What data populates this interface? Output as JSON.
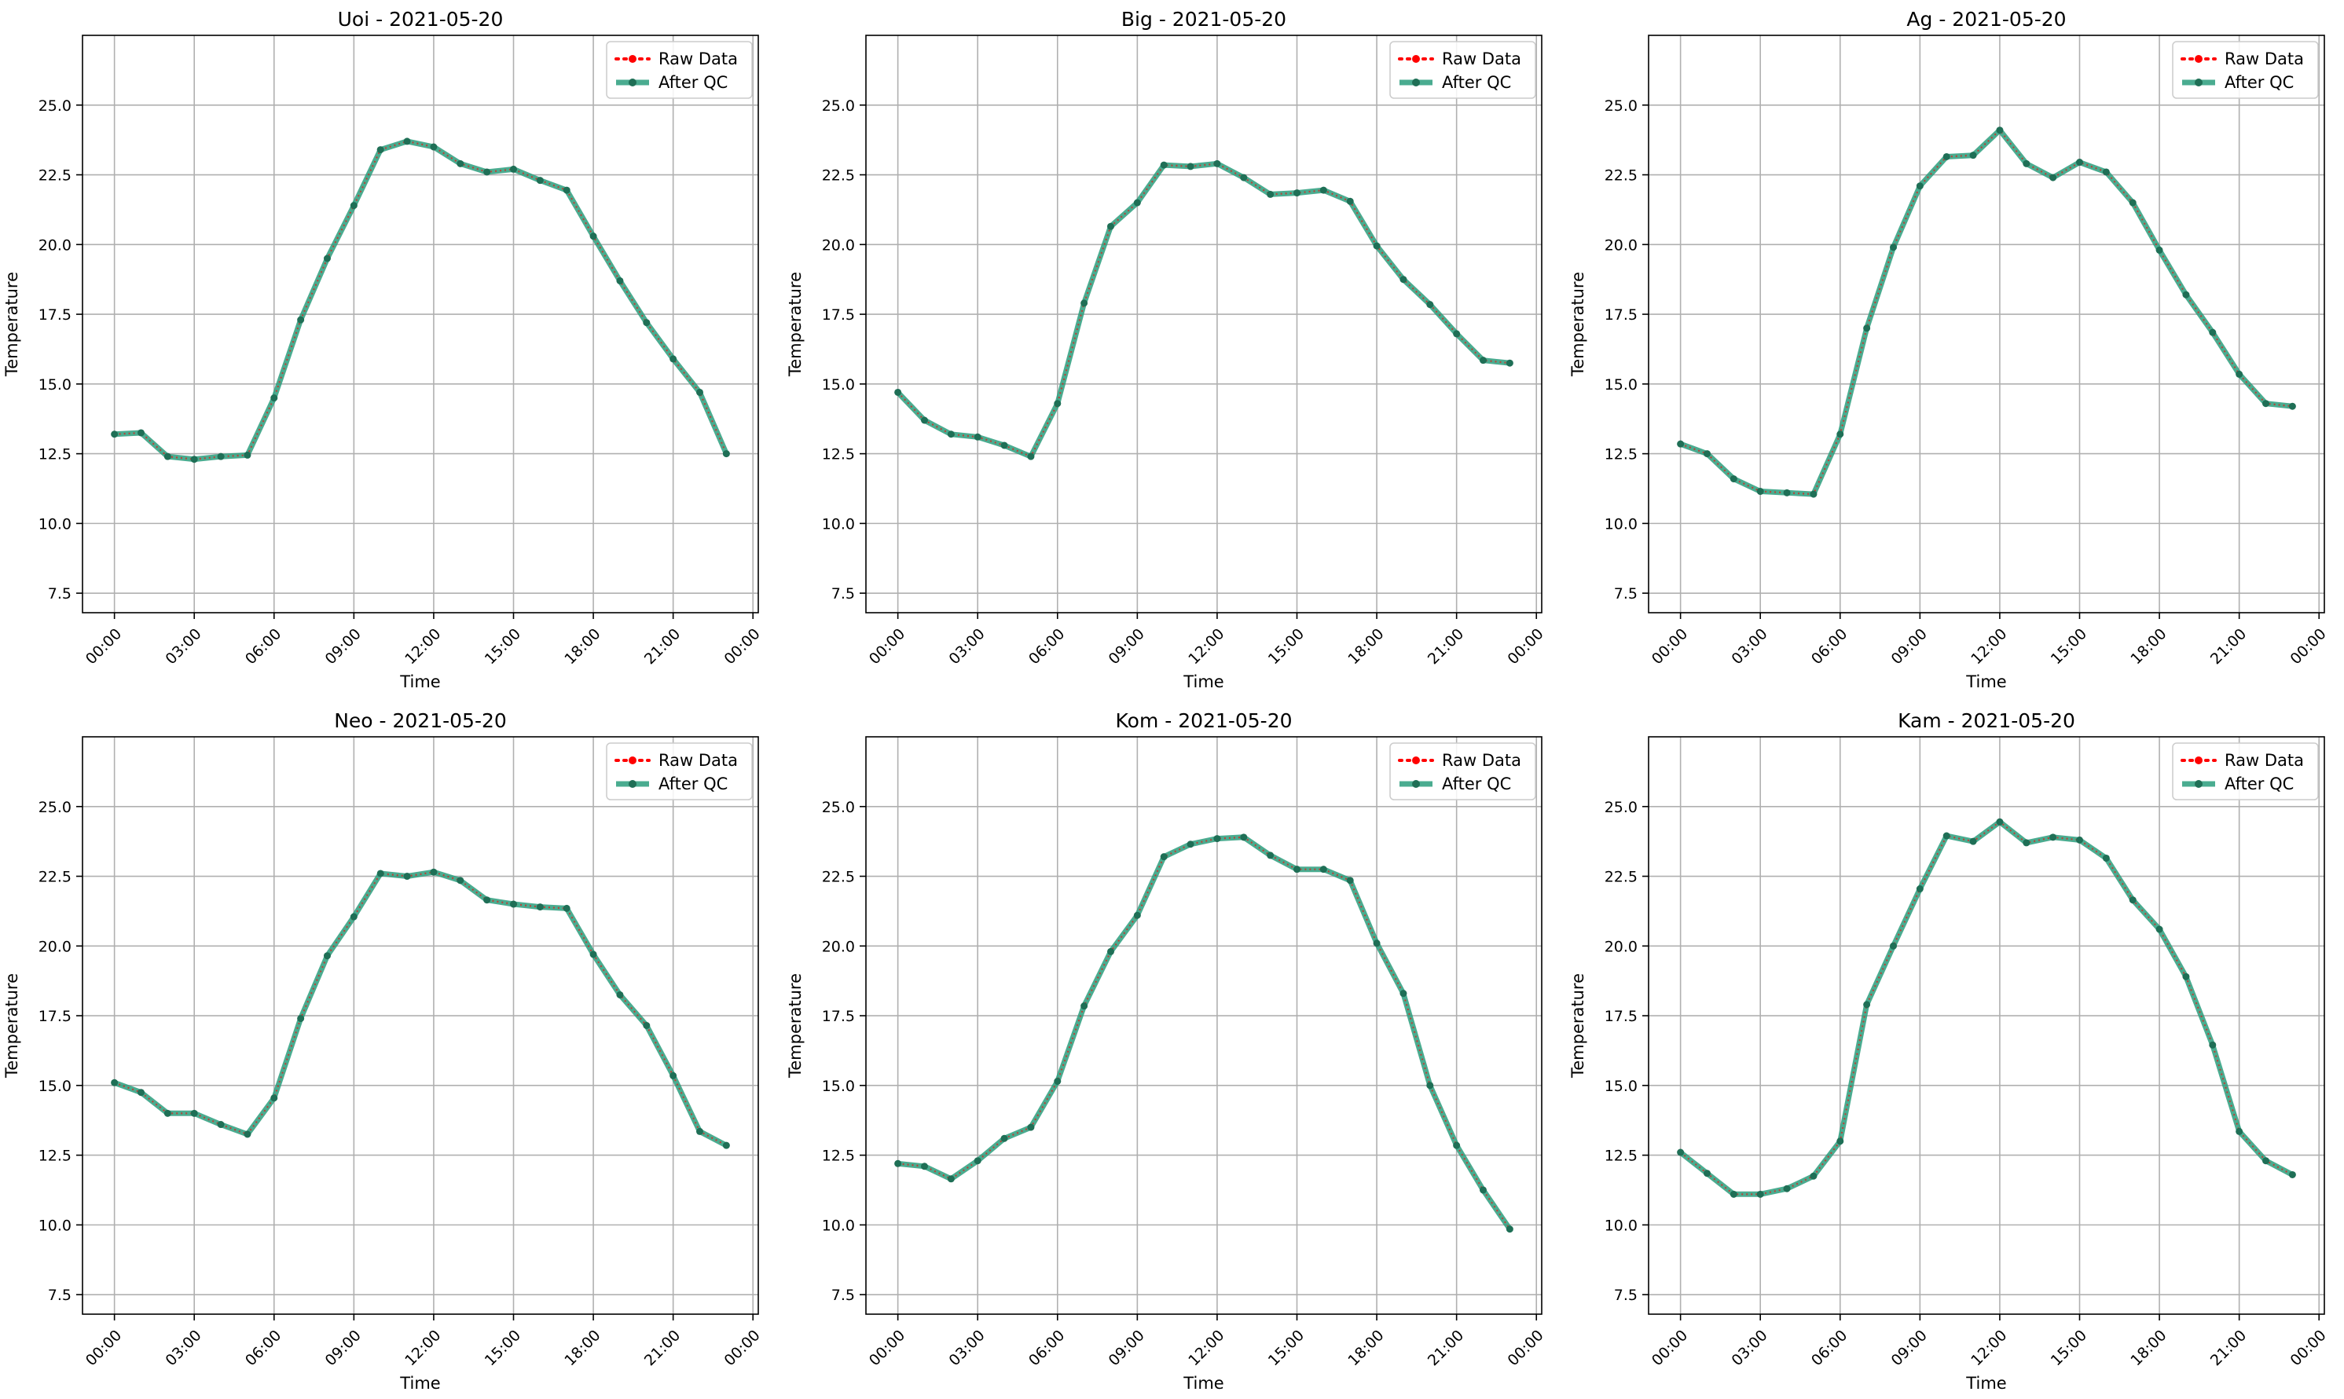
{
  "colors": {
    "raw": "#ff0000",
    "qc": "#2a9d7c",
    "qc_marker": "#1f6f56",
    "grid": "#b0b0b0",
    "legend_border": "#cccccc"
  },
  "chart_data": [
    {
      "type": "line",
      "title": "Uoi - 2021-05-20",
      "xlabel": "Time",
      "ylabel": "Temperature",
      "ylim": [
        6.8,
        27.5
      ],
      "yticks": [
        "7.5",
        "10.0",
        "12.5",
        "15.0",
        "17.5",
        "20.0",
        "22.5",
        "25.0"
      ],
      "xlim_hours": [
        -1.2,
        24.2
      ],
      "xticks": [
        "00:00",
        "03:00",
        "06:00",
        "09:00",
        "12:00",
        "15:00",
        "18:00",
        "21:00",
        "00:00"
      ],
      "grid": true,
      "legend_position": "top-right",
      "x": [
        "00:00",
        "01:00",
        "02:00",
        "03:00",
        "04:00",
        "05:00",
        "06:00",
        "07:00",
        "08:00",
        "09:00",
        "10:00",
        "11:00",
        "12:00",
        "13:00",
        "14:00",
        "15:00",
        "16:00",
        "17:00",
        "18:00",
        "19:00",
        "20:00",
        "21:00",
        "22:00",
        "23:00"
      ],
      "series": [
        {
          "name": "Raw Data",
          "values": [
            13.2,
            13.25,
            12.4,
            12.3,
            12.4,
            12.45,
            14.5,
            17.3,
            19.5,
            21.4,
            23.4,
            23.7,
            23.5,
            22.9,
            22.6,
            22.7,
            22.3,
            21.95,
            20.3,
            18.7,
            17.2,
            15.9,
            14.7,
            12.5
          ]
        },
        {
          "name": "After QC",
          "values": [
            13.2,
            13.25,
            12.4,
            12.3,
            12.4,
            12.45,
            14.5,
            17.3,
            19.5,
            21.4,
            23.4,
            23.7,
            23.5,
            22.9,
            22.6,
            22.7,
            22.3,
            21.95,
            20.3,
            18.7,
            17.2,
            15.9,
            14.7,
            12.5
          ]
        }
      ]
    },
    {
      "type": "line",
      "title": "Big - 2021-05-20",
      "xlabel": "Time",
      "ylabel": "Temperature",
      "ylim": [
        6.8,
        27.5
      ],
      "yticks": [
        "7.5",
        "10.0",
        "12.5",
        "15.0",
        "17.5",
        "20.0",
        "22.5",
        "25.0"
      ],
      "xlim_hours": [
        -1.2,
        24.2
      ],
      "xticks": [
        "00:00",
        "03:00",
        "06:00",
        "09:00",
        "12:00",
        "15:00",
        "18:00",
        "21:00",
        "00:00"
      ],
      "grid": true,
      "legend_position": "top-right",
      "x": [
        "00:00",
        "01:00",
        "02:00",
        "03:00",
        "04:00",
        "05:00",
        "06:00",
        "07:00",
        "08:00",
        "09:00",
        "10:00",
        "11:00",
        "12:00",
        "13:00",
        "14:00",
        "15:00",
        "16:00",
        "17:00",
        "18:00",
        "19:00",
        "20:00",
        "21:00",
        "22:00",
        "23:00"
      ],
      "series": [
        {
          "name": "Raw Data",
          "values": [
            14.7,
            13.7,
            13.2,
            13.1,
            12.8,
            12.4,
            14.3,
            17.9,
            20.65,
            21.5,
            22.85,
            22.8,
            22.9,
            22.4,
            21.8,
            21.85,
            21.95,
            21.55,
            19.95,
            18.75,
            17.85,
            16.8,
            15.85,
            15.75
          ]
        },
        {
          "name": "After QC",
          "values": [
            14.7,
            13.7,
            13.2,
            13.1,
            12.8,
            12.4,
            14.3,
            17.9,
            20.65,
            21.5,
            22.85,
            22.8,
            22.9,
            22.4,
            21.8,
            21.85,
            21.95,
            21.55,
            19.95,
            18.75,
            17.85,
            16.8,
            15.85,
            15.75
          ]
        }
      ]
    },
    {
      "type": "line",
      "title": "Ag - 2021-05-20",
      "xlabel": "Time",
      "ylabel": "Temperature",
      "ylim": [
        6.8,
        27.5
      ],
      "yticks": [
        "7.5",
        "10.0",
        "12.5",
        "15.0",
        "17.5",
        "20.0",
        "22.5",
        "25.0"
      ],
      "xlim_hours": [
        -1.2,
        24.2
      ],
      "xticks": [
        "00:00",
        "03:00",
        "06:00",
        "09:00",
        "12:00",
        "15:00",
        "18:00",
        "21:00",
        "00:00"
      ],
      "grid": true,
      "legend_position": "top-right",
      "x": [
        "00:00",
        "01:00",
        "02:00",
        "03:00",
        "04:00",
        "05:00",
        "06:00",
        "07:00",
        "08:00",
        "09:00",
        "10:00",
        "11:00",
        "12:00",
        "13:00",
        "14:00",
        "15:00",
        "16:00",
        "17:00",
        "18:00",
        "19:00",
        "20:00",
        "21:00",
        "22:00",
        "23:00"
      ],
      "series": [
        {
          "name": "Raw Data",
          "values": [
            12.85,
            12.5,
            11.6,
            11.15,
            11.1,
            11.05,
            13.2,
            17.0,
            19.9,
            22.1,
            23.15,
            23.2,
            24.1,
            22.9,
            22.4,
            22.95,
            22.6,
            21.5,
            19.8,
            18.2,
            16.85,
            15.35,
            14.3,
            14.2
          ]
        },
        {
          "name": "After QC",
          "values": [
            12.85,
            12.5,
            11.6,
            11.15,
            11.1,
            11.05,
            13.2,
            17.0,
            19.9,
            22.1,
            23.15,
            23.2,
            24.1,
            22.9,
            22.4,
            22.95,
            22.6,
            21.5,
            19.8,
            18.2,
            16.85,
            15.35,
            14.3,
            14.2
          ]
        }
      ]
    },
    {
      "type": "line",
      "title": "Neo - 2021-05-20",
      "xlabel": "Time",
      "ylabel": "Temperature",
      "ylim": [
        6.8,
        27.5
      ],
      "yticks": [
        "7.5",
        "10.0",
        "12.5",
        "15.0",
        "17.5",
        "20.0",
        "22.5",
        "25.0"
      ],
      "xlim_hours": [
        -1.2,
        24.2
      ],
      "xticks": [
        "00:00",
        "03:00",
        "06:00",
        "09:00",
        "12:00",
        "15:00",
        "18:00",
        "21:00",
        "00:00"
      ],
      "grid": true,
      "legend_position": "top-right",
      "x": [
        "00:00",
        "01:00",
        "02:00",
        "03:00",
        "04:00",
        "05:00",
        "06:00",
        "07:00",
        "08:00",
        "09:00",
        "10:00",
        "11:00",
        "12:00",
        "13:00",
        "14:00",
        "15:00",
        "16:00",
        "17:00",
        "18:00",
        "19:00",
        "20:00",
        "21:00",
        "22:00",
        "23:00"
      ],
      "series": [
        {
          "name": "Raw Data",
          "values": [
            15.1,
            14.75,
            14.0,
            14.0,
            13.6,
            13.25,
            14.55,
            17.4,
            19.65,
            21.05,
            22.6,
            22.5,
            22.65,
            22.35,
            21.65,
            21.5,
            21.4,
            21.35,
            19.7,
            18.25,
            17.15,
            15.35,
            13.35,
            12.85
          ]
        },
        {
          "name": "After QC",
          "values": [
            15.1,
            14.75,
            14.0,
            14.0,
            13.6,
            13.25,
            14.55,
            17.4,
            19.65,
            21.05,
            22.6,
            22.5,
            22.65,
            22.35,
            21.65,
            21.5,
            21.4,
            21.35,
            19.7,
            18.25,
            17.15,
            15.35,
            13.35,
            12.85
          ]
        }
      ]
    },
    {
      "type": "line",
      "title": "Kom - 2021-05-20",
      "xlabel": "Time",
      "ylabel": "Temperature",
      "ylim": [
        6.8,
        27.5
      ],
      "yticks": [
        "7.5",
        "10.0",
        "12.5",
        "15.0",
        "17.5",
        "20.0",
        "22.5",
        "25.0"
      ],
      "xlim_hours": [
        -1.2,
        24.2
      ],
      "xticks": [
        "00:00",
        "03:00",
        "06:00",
        "09:00",
        "12:00",
        "15:00",
        "18:00",
        "21:00",
        "00:00"
      ],
      "grid": true,
      "legend_position": "top-right",
      "x": [
        "00:00",
        "01:00",
        "02:00",
        "03:00",
        "04:00",
        "05:00",
        "06:00",
        "07:00",
        "08:00",
        "09:00",
        "10:00",
        "11:00",
        "12:00",
        "13:00",
        "14:00",
        "15:00",
        "16:00",
        "17:00",
        "18:00",
        "19:00",
        "20:00",
        "21:00",
        "22:00",
        "23:00"
      ],
      "series": [
        {
          "name": "Raw Data",
          "values": [
            12.2,
            12.1,
            11.65,
            12.3,
            13.1,
            13.5,
            15.15,
            17.85,
            19.8,
            21.1,
            23.2,
            23.65,
            23.85,
            23.9,
            23.25,
            22.75,
            22.75,
            22.35,
            20.1,
            18.3,
            15.0,
            12.85,
            11.25,
            9.85
          ]
        },
        {
          "name": "After QC",
          "values": [
            12.2,
            12.1,
            11.65,
            12.3,
            13.1,
            13.5,
            15.15,
            17.85,
            19.8,
            21.1,
            23.2,
            23.65,
            23.85,
            23.9,
            23.25,
            22.75,
            22.75,
            22.35,
            20.1,
            18.3,
            15.0,
            12.85,
            11.25,
            9.85
          ]
        }
      ]
    },
    {
      "type": "line",
      "title": "Kam - 2021-05-20",
      "xlabel": "Time",
      "ylabel": "Temperature",
      "ylim": [
        6.8,
        27.5
      ],
      "yticks": [
        "7.5",
        "10.0",
        "12.5",
        "15.0",
        "17.5",
        "20.0",
        "22.5",
        "25.0"
      ],
      "xlim_hours": [
        -1.2,
        24.2
      ],
      "xticks": [
        "00:00",
        "03:00",
        "06:00",
        "09:00",
        "12:00",
        "15:00",
        "18:00",
        "21:00",
        "00:00"
      ],
      "grid": true,
      "legend_position": "top-right",
      "x": [
        "00:00",
        "01:00",
        "02:00",
        "03:00",
        "04:00",
        "05:00",
        "06:00",
        "07:00",
        "08:00",
        "09:00",
        "10:00",
        "11:00",
        "12:00",
        "13:00",
        "14:00",
        "15:00",
        "16:00",
        "17:00",
        "18:00",
        "19:00",
        "20:00",
        "21:00",
        "22:00",
        "23:00"
      ],
      "series": [
        {
          "name": "Raw Data",
          "values": [
            12.6,
            11.85,
            11.1,
            11.1,
            11.3,
            11.75,
            13.0,
            17.9,
            20.0,
            22.05,
            23.95,
            23.75,
            24.45,
            23.7,
            23.9,
            23.8,
            23.15,
            21.65,
            20.6,
            18.9,
            16.45,
            13.35,
            12.3,
            11.8
          ]
        },
        {
          "name": "After QC",
          "values": [
            12.6,
            11.85,
            11.1,
            11.1,
            11.3,
            11.75,
            13.0,
            17.9,
            20.0,
            22.05,
            23.95,
            23.75,
            24.45,
            23.7,
            23.9,
            23.8,
            23.15,
            21.65,
            20.6,
            18.9,
            16.45,
            13.35,
            12.3,
            11.8
          ]
        }
      ]
    }
  ]
}
